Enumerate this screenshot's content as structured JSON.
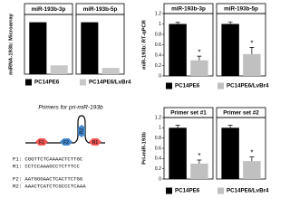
{
  "chart_data": [
    {
      "type": "bar",
      "ylabel": "miRNA-193b: Microarray",
      "categories": [
        "miR-193b-3p",
        "miR-193b-5p"
      ],
      "ylim": [
        0,
        1.15
      ],
      "series": [
        {
          "name": "PC14PE6",
          "color": "#000000",
          "values": [
            1,
            1
          ]
        },
        {
          "name": "PC14PE6/LvBr4",
          "color": "#c8c8c8",
          "values": [
            0.17,
            0.12
          ]
        }
      ]
    },
    {
      "type": "bar",
      "ylabel": "miR-193b: RT-qPCR",
      "categories": [
        "miR-193b-3p",
        "miR-193b-5p"
      ],
      "ylim": [
        0,
        1.2
      ],
      "yticks": [
        0,
        0.2,
        0.4,
        0.6,
        0.8,
        1,
        1.2
      ],
      "series": [
        {
          "name": "PC14PE6",
          "color": "#000000",
          "values": [
            1,
            1
          ],
          "errors": [
            0.03,
            0.04
          ]
        },
        {
          "name": "PC14PE6/LvBr4",
          "color": "#c0c0c0",
          "values": [
            0.3,
            0.42
          ],
          "errors": [
            0.08,
            0.13
          ],
          "markers": [
            "*",
            "*"
          ]
        }
      ]
    },
    {
      "type": "bar",
      "ylabel": "Pri-miR-193b",
      "categories": [
        "Primer set #1",
        "Primer set #2"
      ],
      "ylim": [
        0,
        1.2
      ],
      "yticks": [
        0,
        0.2,
        0.4,
        0.6,
        0.8,
        1,
        1.2
      ],
      "series": [
        {
          "name": "PC14PE6",
          "color": "#000000",
          "values": [
            1,
            1
          ],
          "errors": [
            0.05,
            0.05
          ]
        },
        {
          "name": "PC14PE6/LvBr4",
          "color": "#c0c0c0",
          "values": [
            0.3,
            0.35
          ],
          "errors": [
            0.07,
            0.08
          ],
          "markers": [
            "*",
            "*"
          ]
        }
      ]
    }
  ],
  "diagram": {
    "title": "Primers for pri-miR-193b",
    "primers": [
      "F1",
      "F2",
      "R2",
      "R1"
    ],
    "sequences": [
      "F1: CGGTTCTCAAAACTCTTGC",
      "R1: CCTCCAAAGCCTCTTTCC",
      "F2: AATGGGAACTCACTTCTGG",
      "R2: AAACTCATCTCGCCCTCAAA"
    ]
  }
}
